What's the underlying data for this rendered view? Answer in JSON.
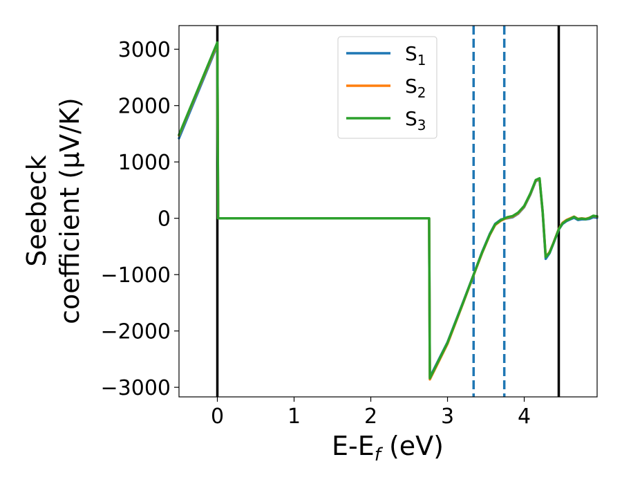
{
  "chart_data": {
    "type": "line",
    "title": "",
    "xlabel": "E-E",
    "xlabel_sub": "f",
    "xlabel_unit": " (eV)",
    "ylabel_line1": "Seebeck",
    "ylabel_line2": "coefficient  (μV/K)",
    "xlim": [
      -0.5,
      4.95
    ],
    "ylim": [
      -3170,
      3420
    ],
    "xticks": [
      0,
      1,
      2,
      3,
      4
    ],
    "xtick_labels": [
      "0",
      "1",
      "2",
      "3",
      "4"
    ],
    "yticks": [
      3000,
      2000,
      1000,
      0,
      -1000,
      -2000,
      -3000
    ],
    "ytick_labels": [
      "3000",
      "2000",
      "1000",
      "0",
      "−1000",
      "−2000",
      "−3000"
    ],
    "grid": false,
    "legend_position": "top-center",
    "vlines": [
      {
        "x": 0.0,
        "style": "solid",
        "color": "#000000"
      },
      {
        "x": 4.45,
        "style": "solid",
        "color": "#000000"
      },
      {
        "x": 3.34,
        "style": "dashed",
        "color": "#1f77b4"
      },
      {
        "x": 3.74,
        "style": "dashed",
        "color": "#1f77b4"
      }
    ],
    "series": [
      {
        "name": "S",
        "sub": "1",
        "color": "#1f77b4",
        "x": [
          -0.5,
          0.0,
          0.01,
          2.76,
          2.77,
          3.0,
          3.2,
          3.34,
          3.45,
          3.55,
          3.62,
          3.7,
          3.78,
          3.85,
          3.92,
          4.0,
          4.08,
          4.15,
          4.2,
          4.24,
          4.28,
          4.33,
          4.38,
          4.45,
          4.5,
          4.55,
          4.6,
          4.65,
          4.7,
          4.75,
          4.8,
          4.85,
          4.9,
          4.95
        ],
        "y": [
          1420,
          3070,
          0,
          0,
          -2820,
          -2200,
          -1500,
          -1000,
          -600,
          -280,
          -100,
          -20,
          0,
          20,
          80,
          200,
          420,
          660,
          690,
          100,
          -720,
          -620,
          -450,
          -200,
          -100,
          -50,
          -20,
          10,
          -30,
          -20,
          -20,
          -10,
          20,
          10
        ]
      },
      {
        "name": "S",
        "sub": "2",
        "color": "#ff7f0e",
        "x": [
          -0.5,
          0.0,
          0.01,
          2.76,
          2.77,
          3.0,
          3.2,
          3.34,
          3.45,
          3.55,
          3.62,
          3.7,
          3.78,
          3.85,
          3.92,
          4.0,
          4.08,
          4.15,
          4.2,
          4.24,
          4.28,
          4.33,
          4.38,
          4.45,
          4.5,
          4.55,
          4.6,
          4.65,
          4.7,
          4.75,
          4.8,
          4.85,
          4.9,
          4.95
        ],
        "y": [
          1470,
          3100,
          0,
          0,
          -2860,
          -2230,
          -1520,
          -1010,
          -620,
          -300,
          -120,
          -40,
          10,
          30,
          90,
          210,
          430,
          670,
          700,
          110,
          -680,
          -600,
          -440,
          -190,
          -80,
          -30,
          0,
          30,
          -10,
          0,
          -10,
          10,
          40,
          30
        ]
      },
      {
        "name": "S",
        "sub": "3",
        "color": "#2ca02c",
        "x": [
          -0.5,
          0.0,
          0.01,
          2.76,
          2.77,
          3.0,
          3.2,
          3.34,
          3.45,
          3.55,
          3.62,
          3.7,
          3.78,
          3.85,
          3.92,
          4.0,
          4.08,
          4.15,
          4.2,
          4.24,
          4.28,
          4.33,
          4.38,
          4.45,
          4.5,
          4.55,
          4.6,
          4.65,
          4.7,
          4.75,
          4.8,
          4.85,
          4.9,
          4.95
        ],
        "y": [
          1480,
          3120,
          0,
          0,
          -2840,
          -2210,
          -1510,
          -1000,
          -610,
          -290,
          -110,
          -30,
          20,
          40,
          100,
          220,
          440,
          680,
          710,
          120,
          -690,
          -610,
          -445,
          -195,
          -90,
          -40,
          -10,
          25,
          -15,
          -5,
          -15,
          5,
          45,
          35
        ]
      }
    ]
  }
}
